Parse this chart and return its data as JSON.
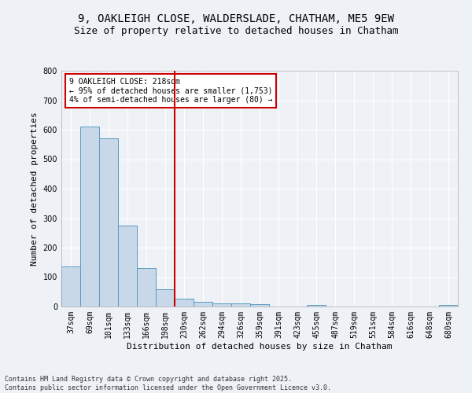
{
  "title_line1": "9, OAKLEIGH CLOSE, WALDERSLADE, CHATHAM, ME5 9EW",
  "title_line2": "Size of property relative to detached houses in Chatham",
  "xlabel": "Distribution of detached houses by size in Chatham",
  "ylabel": "Number of detached properties",
  "footer_line1": "Contains HM Land Registry data © Crown copyright and database right 2025.",
  "footer_line2": "Contains public sector information licensed under the Open Government Licence v3.0.",
  "categories": [
    "37sqm",
    "69sqm",
    "101sqm",
    "133sqm",
    "166sqm",
    "198sqm",
    "230sqm",
    "262sqm",
    "294sqm",
    "326sqm",
    "359sqm",
    "391sqm",
    "423sqm",
    "455sqm",
    "487sqm",
    "519sqm",
    "551sqm",
    "584sqm",
    "616sqm",
    "648sqm",
    "680sqm"
  ],
  "values": [
    135,
    610,
    570,
    275,
    130,
    60,
    28,
    17,
    10,
    12,
    8,
    0,
    0,
    5,
    0,
    0,
    0,
    0,
    0,
    0,
    5
  ],
  "bar_color": "#c8d8e8",
  "bar_edge_color": "#5a9abf",
  "vline_x": 5.5,
  "vline_color": "#cc0000",
  "annotation_text": "9 OAKLEIGH CLOSE: 218sqm\n← 95% of detached houses are smaller (1,753)\n4% of semi-detached houses are larger (80) →",
  "annotation_box_color": "#cc0000",
  "annotation_text_color": "#000000",
  "annotation_bg": "#ffffff",
  "ylim": [
    0,
    800
  ],
  "yticks": [
    0,
    100,
    200,
    300,
    400,
    500,
    600,
    700,
    800
  ],
  "background_color": "#eef2f7",
  "grid_color": "#ffffff",
  "title_fontsize": 10,
  "subtitle_fontsize": 9,
  "axis_label_fontsize": 8,
  "tick_fontsize": 7,
  "footer_fontsize": 6,
  "annotation_fontsize": 7
}
